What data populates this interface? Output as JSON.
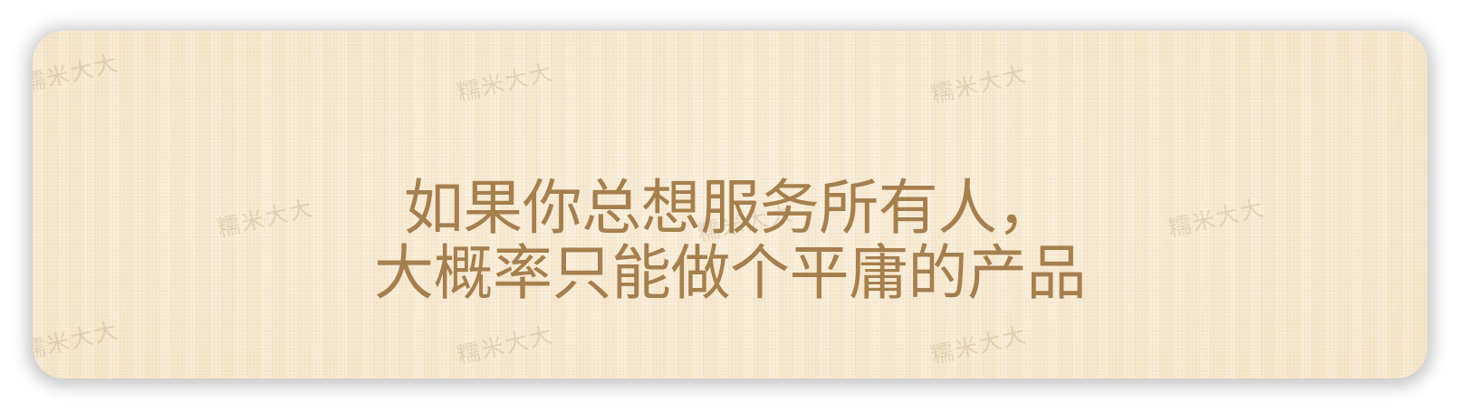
{
  "watermark": {
    "text": "糯米大大"
  },
  "headline": {
    "line1": "如果你总想服务所有人，",
    "line2": "大概率只能做个平庸的产品"
  },
  "colors": {
    "background": "#f8ecd6",
    "text": "#a67f4e"
  }
}
